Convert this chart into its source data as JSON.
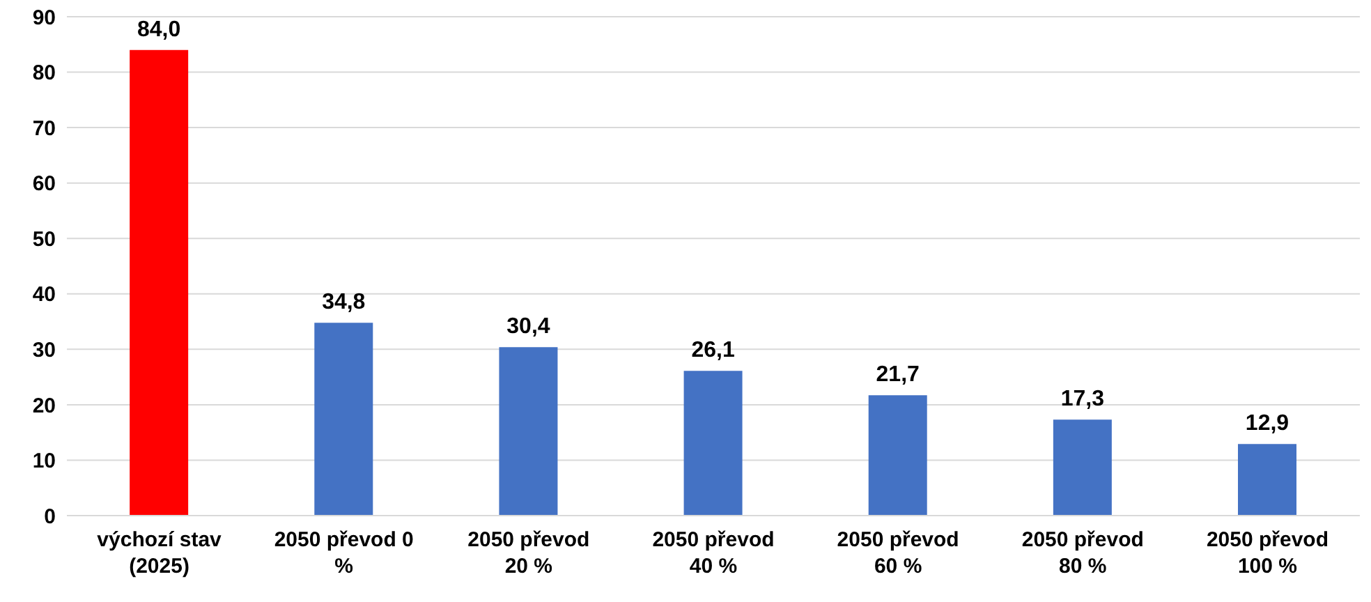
{
  "chart_data": {
    "type": "bar",
    "categories": [
      "výchozí stav (2025)",
      "2050 převod 0 %",
      "2050 převod 20 %",
      "2050 převod 40 %",
      "2050 převod 60 %",
      "2050 převod 80 %",
      "2050 převod 100 %"
    ],
    "values": [
      84.0,
      34.8,
      30.4,
      26.1,
      21.7,
      17.3,
      12.9
    ],
    "colors": [
      "#ff0000",
      "#4472c4",
      "#4472c4",
      "#4472c4",
      "#4472c4",
      "#4472c4",
      "#4472c4"
    ],
    "value_labels": [
      "84,0",
      "34,8",
      "30,4",
      "26,1",
      "21,7",
      "17,3",
      "12,9"
    ],
    "ylim": [
      0,
      90
    ],
    "yticks": [
      0,
      10,
      20,
      30,
      40,
      50,
      60,
      70,
      80,
      90
    ],
    "grid": "y"
  }
}
